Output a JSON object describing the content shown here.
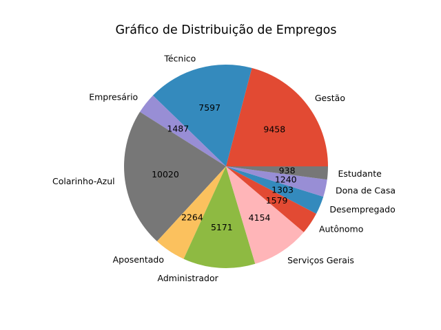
{
  "chart_data": {
    "type": "pie",
    "title": "Gráfico de Distribuição de Empregos",
    "categories": [
      "Gestão",
      "Técnico",
      "Empresário",
      "Colarinho-Azul",
      "Aposentado",
      "Administrador",
      "Serviços Gerais",
      "Autônomo",
      "Desempregado",
      "Dona de Casa",
      "Estudante"
    ],
    "values": [
      9458,
      7597,
      1487,
      10020,
      2264,
      5171,
      4154,
      1579,
      1303,
      1240,
      938
    ],
    "colors": [
      "#e24a33",
      "#348abd",
      "#988ed5",
      "#777777",
      "#fbc15e",
      "#8eba42",
      "#ffb5b8",
      "#e24a33",
      "#348abd",
      "#988ed5",
      "#777777"
    ],
    "start_angle_deg": 0,
    "direction": "counterclockwise",
    "legend": "none"
  }
}
